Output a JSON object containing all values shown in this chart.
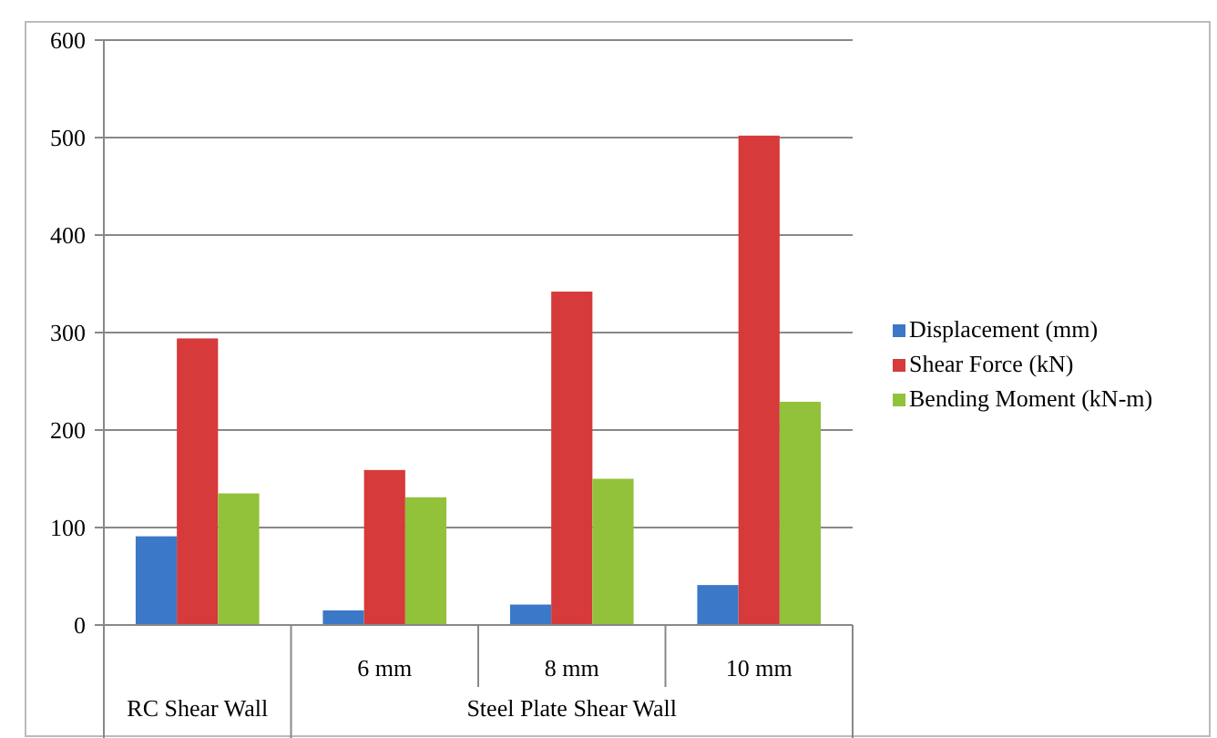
{
  "chart_data": {
    "type": "bar",
    "categories": [
      null,
      "6 mm",
      "8 mm",
      "10 mm"
    ],
    "series": [
      {
        "name": "Displacement (mm)",
        "color": "#3b78c8",
        "values": [
          91,
          15,
          21,
          41
        ]
      },
      {
        "name": "Shear Force (kN)",
        "color": "#d63a3a",
        "values": [
          294,
          159,
          342,
          502
        ]
      },
      {
        "name": "Bending Moment (kN-m)",
        "color": "#92c13a",
        "values": [
          135,
          131,
          150,
          229
        ]
      }
    ],
    "ylim": [
      0,
      600
    ],
    "yticks": [
      0,
      100,
      200,
      300,
      400,
      500,
      600
    ],
    "grid": "y",
    "legend": "right",
    "annotations": [
      "RC Shear Wall",
      "Steel Plate Shear Wall"
    ]
  }
}
